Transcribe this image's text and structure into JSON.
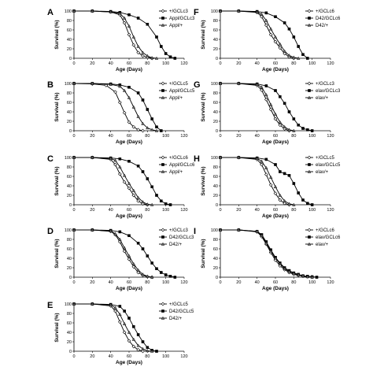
{
  "chart_data": [
    {
      "type": "line",
      "panel_label": "A",
      "xlabel": "Age (Days)",
      "ylabel": "Survival (%)",
      "xlim": [
        0,
        120
      ],
      "ylim": [
        0,
        100
      ],
      "xticks": [
        0,
        20,
        40,
        60,
        80,
        100,
        120
      ],
      "yticks": [
        0,
        20,
        40,
        60,
        80,
        100
      ],
      "legend_position": "top-right",
      "grid": false,
      "series": [
        {
          "name": "+/GCLc3",
          "marker": "diamond",
          "x": [
            0,
            20,
            40,
            50,
            55,
            60,
            65,
            70,
            75,
            80,
            85
          ],
          "y": [
            100,
            100,
            98,
            92,
            75,
            50,
            28,
            12,
            5,
            2,
            0
          ]
        },
        {
          "name": "Appl/GCLc3",
          "marker": "square",
          "x": [
            0,
            20,
            40,
            50,
            60,
            70,
            80,
            90,
            95,
            100,
            105,
            110
          ],
          "y": [
            100,
            100,
            99,
            97,
            92,
            85,
            72,
            45,
            25,
            10,
            3,
            0
          ]
        },
        {
          "name": "Appl/+",
          "marker": "triangle",
          "x": [
            0,
            20,
            40,
            50,
            55,
            60,
            65,
            70,
            75,
            80,
            85,
            90
          ],
          "y": [
            100,
            100,
            98,
            95,
            85,
            68,
            45,
            25,
            12,
            5,
            1,
            0
          ]
        }
      ]
    },
    {
      "type": "line",
      "panel_label": "B",
      "xlabel": "Age (Days)",
      "ylabel": "Survival (%)",
      "xlim": [
        0,
        120
      ],
      "ylim": [
        0,
        100
      ],
      "xticks": [
        0,
        20,
        40,
        60,
        80,
        100,
        120
      ],
      "yticks": [
        0,
        20,
        40,
        60,
        80,
        100
      ],
      "legend_position": "top-right",
      "grid": false,
      "series": [
        {
          "name": "+/GCLc5",
          "marker": "diamond",
          "x": [
            0,
            20,
            35,
            45,
            50,
            55,
            60,
            65,
            70,
            75
          ],
          "y": [
            100,
            99,
            96,
            82,
            60,
            38,
            18,
            8,
            2,
            0
          ]
        },
        {
          "name": "Appl/GCLc5",
          "marker": "square",
          "x": [
            0,
            20,
            40,
            50,
            60,
            70,
            75,
            80,
            85,
            90,
            95
          ],
          "y": [
            100,
            100,
            99,
            97,
            92,
            80,
            65,
            45,
            25,
            8,
            0
          ]
        },
        {
          "name": "Appl/+",
          "marker": "triangle",
          "x": [
            0,
            20,
            40,
            50,
            55,
            60,
            65,
            70,
            75,
            80,
            85,
            90
          ],
          "y": [
            100,
            100,
            98,
            94,
            85,
            70,
            50,
            30,
            15,
            6,
            2,
            0
          ]
        }
      ]
    },
    {
      "type": "line",
      "panel_label": "C",
      "xlabel": "Age (Days)",
      "ylabel": "Survival (%)",
      "xlim": [
        0,
        120
      ],
      "ylim": [
        0,
        100
      ],
      "xticks": [
        0,
        20,
        40,
        60,
        80,
        100,
        120
      ],
      "yticks": [
        0,
        20,
        40,
        60,
        80,
        100
      ],
      "legend_position": "top-right",
      "grid": false,
      "series": [
        {
          "name": "+/GCLc6",
          "marker": "diamond",
          "x": [
            0,
            20,
            40,
            45,
            50,
            55,
            60,
            65,
            70,
            75,
            80
          ],
          "y": [
            100,
            100,
            96,
            85,
            65,
            48,
            35,
            20,
            8,
            2,
            0
          ]
        },
        {
          "name": "Appl/GCLc6",
          "marker": "square",
          "x": [
            0,
            20,
            40,
            50,
            60,
            70,
            75,
            80,
            85,
            90,
            95,
            100,
            105
          ],
          "y": [
            100,
            100,
            99,
            97,
            92,
            82,
            70,
            55,
            38,
            20,
            8,
            2,
            0
          ]
        },
        {
          "name": "Appl/+",
          "marker": "triangle",
          "x": [
            0,
            20,
            40,
            45,
            50,
            55,
            60,
            65,
            70,
            75,
            80,
            85
          ],
          "y": [
            100,
            100,
            98,
            94,
            80,
            62,
            45,
            30,
            15,
            6,
            1,
            0
          ]
        }
      ]
    },
    {
      "type": "line",
      "panel_label": "D",
      "xlabel": "Age (Days)",
      "ylabel": "Survival (%)",
      "xlim": [
        0,
        120
      ],
      "ylim": [
        0,
        100
      ],
      "xticks": [
        0,
        20,
        40,
        60,
        80,
        100,
        120
      ],
      "yticks": [
        0,
        20,
        40,
        60,
        80,
        100
      ],
      "legend_position": "top-right",
      "grid": false,
      "series": [
        {
          "name": "+/GCLc3",
          "marker": "diamond",
          "x": [
            0,
            20,
            40,
            45,
            50,
            55,
            60,
            65,
            70,
            75,
            80,
            85
          ],
          "y": [
            100,
            100,
            97,
            90,
            75,
            55,
            38,
            22,
            10,
            4,
            1,
            0
          ]
        },
        {
          "name": "D42/GCLc3",
          "marker": "square",
          "x": [
            0,
            20,
            40,
            50,
            60,
            70,
            75,
            80,
            85,
            90,
            95,
            100,
            105,
            110
          ],
          "y": [
            100,
            100,
            99,
            96,
            88,
            72,
            60,
            45,
            30,
            18,
            10,
            5,
            2,
            0
          ]
        },
        {
          "name": "D42/+",
          "marker": "triangle",
          "x": [
            0,
            20,
            40,
            45,
            50,
            55,
            60,
            65,
            70,
            75,
            80,
            85
          ],
          "y": [
            100,
            100,
            98,
            92,
            80,
            62,
            45,
            28,
            15,
            6,
            2,
            0
          ]
        }
      ]
    },
    {
      "type": "line",
      "panel_label": "E",
      "xlabel": "Age (Days)",
      "ylabel": "Survival (%)",
      "xlim": [
        0,
        120
      ],
      "ylim": [
        0,
        100
      ],
      "xticks": [
        0,
        20,
        40,
        60,
        80,
        100,
        120
      ],
      "yticks": [
        0,
        20,
        40,
        60,
        80,
        100
      ],
      "legend_position": "top-right",
      "grid": false,
      "series": [
        {
          "name": "+/GCLc5",
          "marker": "diamond",
          "x": [
            0,
            20,
            40,
            45,
            50,
            55,
            60,
            65,
            70,
            75
          ],
          "y": [
            100,
            100,
            96,
            85,
            62,
            40,
            22,
            10,
            3,
            0
          ]
        },
        {
          "name": "D42/GCLc5",
          "marker": "square",
          "x": [
            0,
            20,
            40,
            50,
            55,
            60,
            65,
            70,
            75,
            80,
            85,
            90
          ],
          "y": [
            100,
            100,
            99,
            95,
            85,
            70,
            52,
            35,
            20,
            8,
            2,
            0
          ]
        },
        {
          "name": "D42/+",
          "marker": "triangle",
          "x": [
            0,
            20,
            40,
            45,
            50,
            55,
            60,
            65,
            70,
            75,
            80,
            85
          ],
          "y": [
            100,
            100,
            98,
            92,
            78,
            58,
            40,
            25,
            12,
            5,
            1,
            0
          ]
        }
      ]
    },
    {
      "type": "line",
      "panel_label": "F",
      "xlabel": "Age (Days)",
      "ylabel": "Survival (%)",
      "xlim": [
        0,
        120
      ],
      "ylim": [
        0,
        100
      ],
      "xticks": [
        0,
        20,
        40,
        60,
        80,
        100,
        120
      ],
      "yticks": [
        0,
        20,
        40,
        60,
        80,
        100
      ],
      "legend_position": "top-right",
      "grid": false,
      "series": [
        {
          "name": "+/GCLc6",
          "marker": "diamond",
          "x": [
            0,
            20,
            40,
            45,
            50,
            55,
            60,
            65,
            70,
            75,
            80
          ],
          "y": [
            100,
            100,
            97,
            88,
            70,
            50,
            35,
            22,
            10,
            3,
            0
          ]
        },
        {
          "name": "D42/GCLc6",
          "marker": "square",
          "x": [
            0,
            20,
            40,
            50,
            60,
            70,
            75,
            80,
            85,
            90,
            95
          ],
          "y": [
            100,
            100,
            99,
            96,
            88,
            75,
            62,
            45,
            25,
            8,
            0
          ]
        },
        {
          "name": "D42/+",
          "marker": "triangle",
          "x": [
            0,
            20,
            40,
            45,
            50,
            55,
            60,
            65,
            70,
            75,
            80,
            85
          ],
          "y": [
            100,
            100,
            98,
            93,
            80,
            62,
            45,
            30,
            15,
            6,
            2,
            0
          ]
        }
      ]
    },
    {
      "type": "line",
      "panel_label": "G",
      "xlabel": "Age (Days)",
      "ylabel": "Survival (%)",
      "xlim": [
        0,
        120
      ],
      "ylim": [
        0,
        100
      ],
      "xticks": [
        0,
        20,
        40,
        60,
        80,
        100,
        120
      ],
      "yticks": [
        0,
        20,
        40,
        60,
        80,
        100
      ],
      "legend_position": "top-right",
      "grid": false,
      "series": [
        {
          "name": "+/GCLc3",
          "marker": "diamond",
          "x": [
            0,
            20,
            40,
            45,
            50,
            55,
            60,
            65,
            70,
            75
          ],
          "y": [
            100,
            100,
            96,
            86,
            66,
            45,
            25,
            12,
            4,
            0
          ]
        },
        {
          "name": "elav/GCLc3",
          "marker": "square",
          "x": [
            0,
            20,
            40,
            50,
            60,
            65,
            70,
            75,
            80,
            85,
            90,
            95,
            100
          ],
          "y": [
            100,
            100,
            99,
            95,
            85,
            72,
            58,
            40,
            25,
            12,
            5,
            2,
            0
          ]
        },
        {
          "name": "elav/+",
          "marker": "triangle",
          "x": [
            0,
            20,
            40,
            45,
            50,
            55,
            60,
            65,
            70,
            75,
            80
          ],
          "y": [
            100,
            100,
            98,
            92,
            76,
            55,
            35,
            18,
            8,
            2,
            0
          ]
        }
      ]
    },
    {
      "type": "line",
      "panel_label": "H",
      "xlabel": "Age (Days)",
      "ylabel": "Survival (%)",
      "xlim": [
        0,
        120
      ],
      "ylim": [
        0,
        100
      ],
      "xticks": [
        0,
        20,
        40,
        60,
        80,
        100,
        120
      ],
      "yticks": [
        0,
        20,
        40,
        60,
        80,
        100
      ],
      "legend_position": "top-right",
      "grid": false,
      "series": [
        {
          "name": "+/GCLc5",
          "marker": "diamond",
          "x": [
            0,
            20,
            40,
            45,
            50,
            55,
            60,
            65,
            70,
            75
          ],
          "y": [
            100,
            100,
            96,
            85,
            64,
            42,
            24,
            10,
            3,
            0
          ]
        },
        {
          "name": "elav/GCLc5",
          "marker": "square",
          "x": [
            0,
            20,
            40,
            50,
            60,
            65,
            70,
            75,
            80,
            85,
            90,
            95,
            100
          ],
          "y": [
            100,
            100,
            99,
            96,
            85,
            70,
            66,
            62,
            45,
            25,
            10,
            3,
            0
          ]
        },
        {
          "name": "elav/+",
          "marker": "triangle",
          "x": [
            0,
            20,
            40,
            45,
            50,
            55,
            60,
            65,
            70,
            75,
            80
          ],
          "y": [
            100,
            100,
            98,
            92,
            78,
            58,
            38,
            20,
            8,
            2,
            0
          ]
        }
      ]
    },
    {
      "type": "line",
      "panel_label": "I",
      "xlabel": "Age (Days)",
      "ylabel": "Survival (%)",
      "xlim": [
        0,
        120
      ],
      "ylim": [
        0,
        100
      ],
      "xticks": [
        0,
        20,
        40,
        60,
        80,
        100,
        120
      ],
      "yticks": [
        0,
        20,
        40,
        60,
        80,
        100
      ],
      "legend_position": "top-right",
      "grid": false,
      "series": [
        {
          "name": "+/GCLc6",
          "marker": "diamond",
          "x": [
            0,
            20,
            40,
            45,
            50,
            55,
            60,
            65,
            70,
            75,
            80,
            85,
            90,
            95,
            100
          ],
          "y": [
            100,
            100,
            96,
            86,
            70,
            52,
            36,
            24,
            16,
            10,
            6,
            4,
            2,
            1,
            0
          ]
        },
        {
          "name": "elav/GCLc6",
          "marker": "square",
          "x": [
            0,
            20,
            40,
            45,
            50,
            55,
            60,
            65,
            70,
            75,
            80,
            85,
            90,
            95,
            100,
            105
          ],
          "y": [
            100,
            100,
            97,
            90,
            75,
            58,
            42,
            30,
            20,
            14,
            9,
            6,
            3,
            2,
            1,
            0
          ]
        },
        {
          "name": "elav/+",
          "marker": "triangle",
          "x": [
            0,
            20,
            40,
            45,
            50,
            55,
            60,
            65,
            70,
            75,
            80,
            85,
            90,
            95,
            100
          ],
          "y": [
            100,
            100,
            97,
            88,
            72,
            55,
            40,
            28,
            18,
            12,
            8,
            5,
            3,
            1,
            0
          ]
        }
      ]
    }
  ]
}
